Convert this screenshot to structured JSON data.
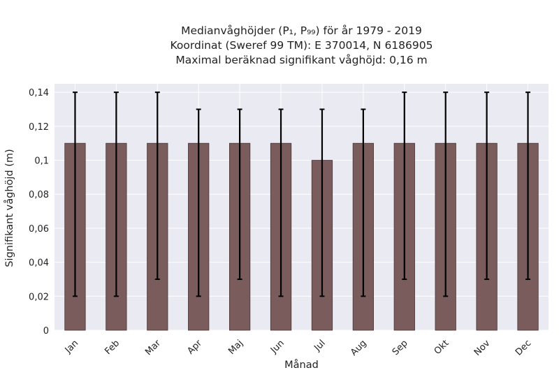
{
  "chart_data": {
    "type": "bar",
    "title_lines": [
      "Medianvåghöjder (P₁, P₉₉) för år 1979 - 2019",
      "Koordinat (Sweref 99 TM): E 370014, N 6186905",
      "Maximal beräknad signifikant våghöjd: 0,16 m"
    ],
    "xlabel": "Månad",
    "ylabel": "Signifikant våghöjd (m)",
    "categories": [
      "Jan",
      "Feb",
      "Mar",
      "Apr",
      "Maj",
      "Jun",
      "Jul",
      "Aug",
      "Sep",
      "Okt",
      "Nov",
      "Dec"
    ],
    "values": [
      0.11,
      0.11,
      0.11,
      0.11,
      0.11,
      0.11,
      0.1,
      0.11,
      0.11,
      0.11,
      0.11,
      0.11
    ],
    "err_low": [
      0.02,
      0.02,
      0.03,
      0.02,
      0.03,
      0.02,
      0.02,
      0.02,
      0.03,
      0.02,
      0.03,
      0.03
    ],
    "err_high": [
      0.14,
      0.14,
      0.14,
      0.13,
      0.13,
      0.13,
      0.13,
      0.13,
      0.14,
      0.14,
      0.14,
      0.14
    ],
    "ylim": [
      0,
      0.145
    ],
    "yticks": [
      0,
      0.02,
      0.04,
      0.06,
      0.08,
      0.1,
      0.12,
      0.14
    ],
    "ytick_labels": [
      "0",
      "0,02",
      "0,04",
      "0,06",
      "0,08",
      "0,1",
      "0,12",
      "0,14"
    ],
    "grid": true,
    "colors": {
      "bar": "#7b5c5c",
      "bar_edge": "#4a3535",
      "error": "#000000",
      "plot_bg": "#eaeaf2",
      "grid": "#ffffff"
    }
  }
}
